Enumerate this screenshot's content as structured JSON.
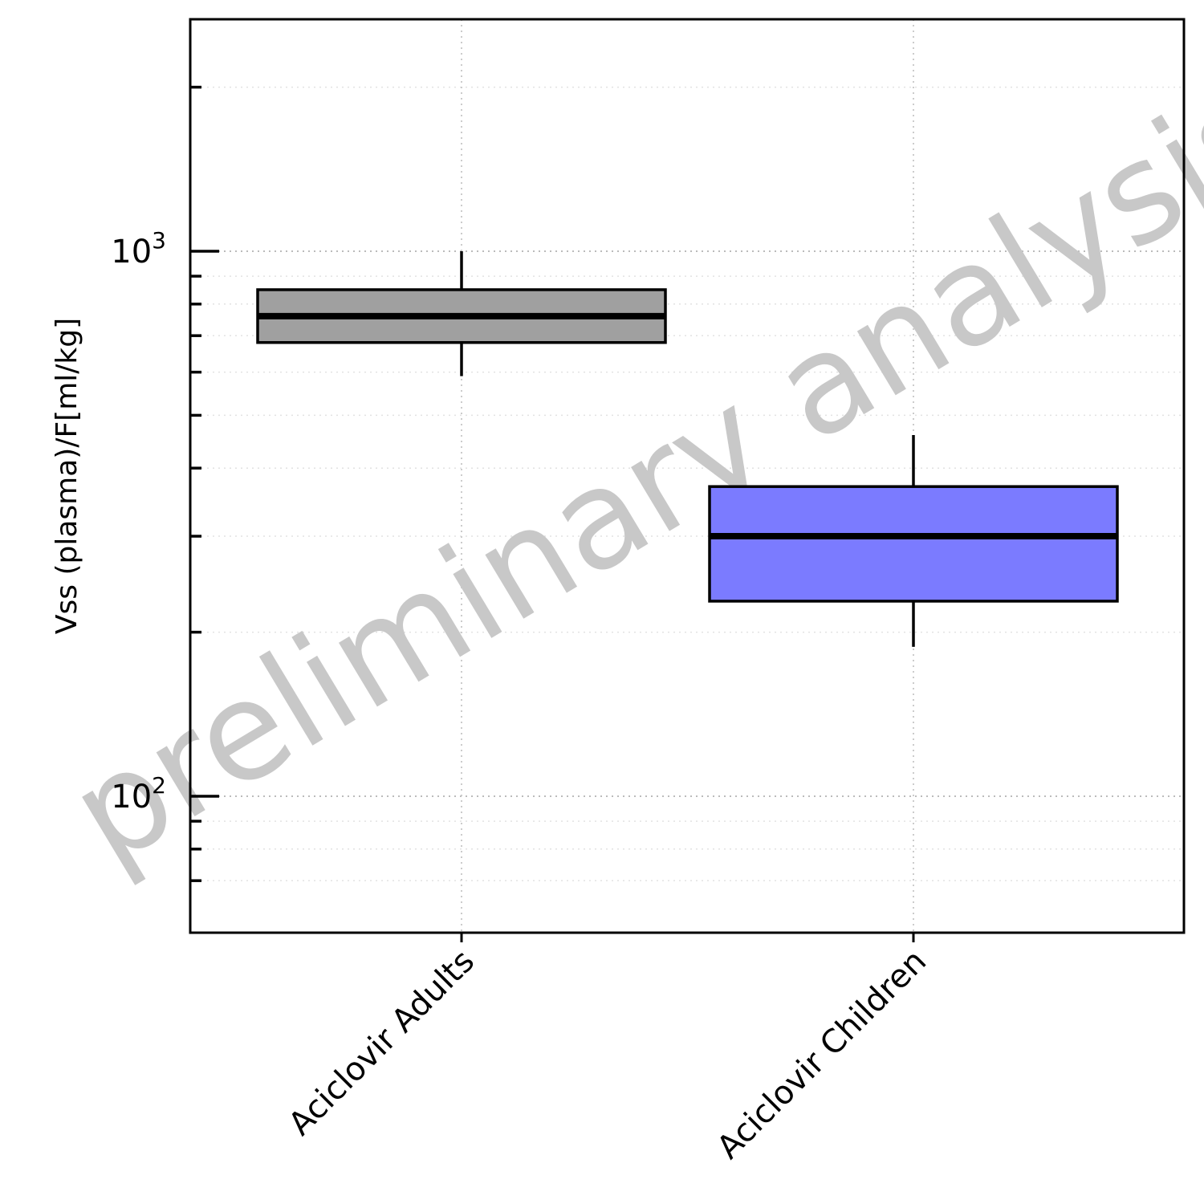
{
  "chart_data": {
    "type": "box",
    "ylabel": "Vss (plasma)/F[ml/kg]",
    "yscale": "log",
    "ylim": [
      60,
      2200
    ],
    "grid": true,
    "yticks_major": [
      {
        "value": 100,
        "base": "10",
        "exp": "2"
      },
      {
        "value": 1000,
        "base": "10",
        "exp": "3"
      }
    ],
    "yticks_minor": [
      70,
      80,
      90,
      200,
      300,
      400,
      500,
      600,
      700,
      800,
      900,
      2000
    ],
    "categories": [
      "Aciclovir Adults",
      "Aciclovir Children"
    ],
    "boxes": [
      {
        "name": "Aciclovir Adults",
        "whisker_low": 590,
        "q1": 680,
        "median": 760,
        "q3": 850,
        "whisker_high": 1000,
        "color": "#a0a0a0"
      },
      {
        "name": "Aciclovir Children",
        "whisker_low": 188,
        "q1": 228,
        "median": 300,
        "q3": 370,
        "whisker_high": 460,
        "color": "#7b7bff"
      }
    ]
  },
  "watermark": "preliminary analysis"
}
